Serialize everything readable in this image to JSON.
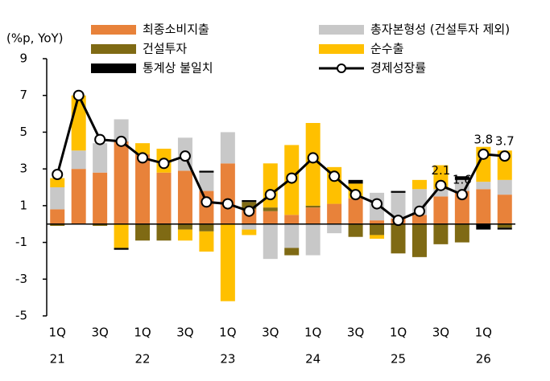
{
  "chart_data": {
    "type": "stacked-bar-line",
    "y_label": "(%p, YoY)",
    "categories": [
      "1Q",
      null,
      "3Q",
      null,
      "1Q",
      null,
      "3Q",
      null,
      "1Q",
      null,
      "3Q",
      null,
      "1Q",
      null,
      "3Q",
      null,
      "1Q",
      null,
      "3Q",
      null,
      "1Q",
      null
    ],
    "years": [
      "21",
      null,
      null,
      null,
      "22",
      null,
      null,
      null,
      "23",
      null,
      null,
      null,
      "24",
      null,
      null,
      null,
      "25",
      null,
      null,
      null,
      "26",
      null
    ],
    "ylim": [
      -5,
      9
    ],
    "yticks": [
      -5,
      -3,
      -1,
      1,
      3,
      5,
      7,
      9
    ],
    "series": [
      {
        "name": "최종소비지출",
        "color": "#e8823a",
        "values": [
          0.8,
          3.0,
          2.8,
          4.5,
          3.8,
          2.8,
          2.9,
          1.8,
          3.3,
          0.8,
          0.7,
          0.5,
          0.9,
          1.1,
          1.4,
          0.2,
          0.3,
          0.5,
          1.5,
          1.8,
          1.9,
          1.6
        ]
      },
      {
        "name": "총자본형성 (건설투자 제외)",
        "color": "#c8c8c8",
        "values": [
          1.2,
          1.0,
          1.6,
          1.2,
          0,
          0,
          1.8,
          1.0,
          1.7,
          -0.3,
          -1.9,
          -1.3,
          -1.7,
          -0.5,
          0,
          1.5,
          1.4,
          1.4,
          0.4,
          0.6,
          0.4,
          0.8
        ]
      },
      {
        "name": "건설투자",
        "color": "#7f6a14",
        "values": [
          -0.1,
          0,
          -0.1,
          0,
          -0.9,
          -0.9,
          -0.3,
          -0.4,
          0,
          0.4,
          0.2,
          -0.4,
          0.1,
          0,
          -0.7,
          -0.6,
          -1.6,
          -1.8,
          -1.1,
          -1.0,
          0,
          -0.2
        ]
      },
      {
        "name": "순수출",
        "color": "#ffc000",
        "values": [
          0.5,
          3.0,
          0,
          -1.3,
          0.6,
          1.3,
          -0.6,
          -1.1,
          -4.2,
          -0.3,
          2.4,
          3.8,
          4.5,
          2.0,
          0.8,
          -0.2,
          0,
          0.5,
          1.3,
          0,
          1.9,
          1.6
        ]
      },
      {
        "name": "통계상 불일치",
        "color": "#000000",
        "values": [
          0,
          0,
          0,
          -0.1,
          0,
          0,
          0,
          0.1,
          0,
          0.1,
          0,
          0,
          0,
          0,
          0.2,
          0,
          0.1,
          0,
          0,
          0.2,
          -0.3,
          -0.1
        ]
      }
    ],
    "line": {
      "name": "경제성장률",
      "color": "#000000",
      "values": [
        2.7,
        7.0,
        4.6,
        4.5,
        3.6,
        3.3,
        3.7,
        1.2,
        1.1,
        0.7,
        1.6,
        2.5,
        3.6,
        2.6,
        1.6,
        1.1,
        0.2,
        0.7,
        2.1,
        1.6,
        3.8,
        3.7
      ],
      "value_labels": [
        null,
        null,
        null,
        null,
        null,
        null,
        null,
        null,
        null,
        null,
        null,
        null,
        null,
        null,
        null,
        null,
        null,
        null,
        "2.1",
        "1.6",
        "3.8",
        "3.7"
      ]
    }
  }
}
